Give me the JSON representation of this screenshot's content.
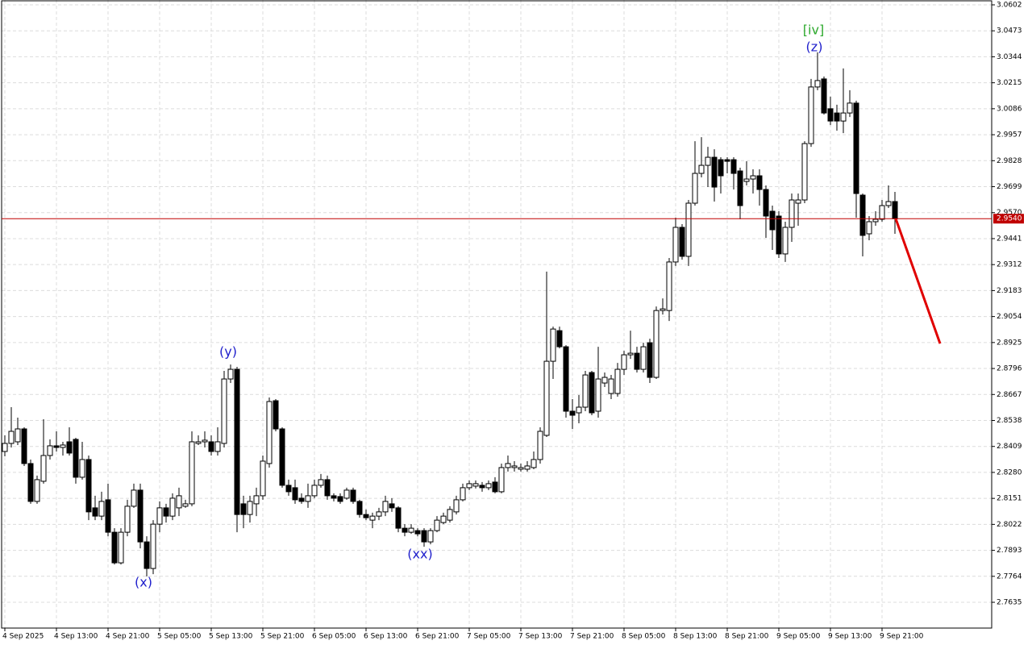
{
  "chart_data": {
    "type": "candlestick",
    "categories": [
      "4 Sep 2025",
      null,
      null,
      null,
      null,
      null,
      null,
      null,
      "4 Sep 13:00",
      null,
      null,
      null,
      null,
      null,
      null,
      null,
      "4 Sep 21:00",
      null,
      null,
      null,
      null,
      null,
      null,
      null,
      "5 Sep 05:00",
      null,
      null,
      null,
      null,
      null,
      null,
      null,
      "5 Sep 13:00",
      null,
      null,
      null,
      null,
      null,
      null,
      null,
      "5 Sep 21:00",
      null,
      null,
      null,
      null,
      null,
      null,
      null,
      "6 Sep 05:00",
      null,
      null,
      null,
      null,
      null,
      null,
      null,
      "6 Sep 13:00",
      null,
      null,
      null,
      null,
      null,
      null,
      null,
      "6 Sep 21:00",
      null,
      null,
      null,
      null,
      null,
      null,
      null,
      "7 Sep 05:00",
      null,
      null,
      null,
      null,
      null,
      null,
      null,
      "7 Sep 13:00",
      null,
      null,
      null,
      null,
      null,
      null,
      null,
      "7 Sep 21:00",
      null,
      null,
      null,
      null,
      null,
      null,
      null,
      "8 Sep 05:00",
      null,
      null,
      null,
      null,
      null,
      null,
      null,
      "8 Sep 13:00",
      null,
      null,
      null,
      null,
      null,
      null,
      null,
      "8 Sep 21:00",
      null,
      null,
      null,
      null,
      null,
      null,
      null,
      "9 Sep 05:00",
      null,
      null,
      null,
      null,
      null,
      null,
      null,
      "9 Sep 13:00",
      null,
      null,
      null,
      null,
      null,
      null,
      null,
      "9 Sep 21:00",
      null,
      null
    ],
    "open": [
      2.8384,
      2.8424,
      2.8432,
      2.8496,
      2.8324,
      2.8136,
      2.8236,
      2.8364,
      2.8412,
      2.8404,
      2.8432,
      2.8444,
      2.8256,
      2.8344,
      2.8104,
      2.8063,
      2.8144,
      2.7983,
      2.7831,
      2.7983,
      2.8112,
      2.8192,
      2.7935,
      2.7803,
      2.8023,
      2.8104,
      2.8063,
      2.8104,
      2.8112,
      2.8124,
      2.8424,
      2.8432,
      2.8432,
      2.8384,
      2.8424,
      2.8744,
      2.8792,
      2.8124,
      2.8071,
      2.8124,
      2.8164,
      2.8324,
      2.8636,
      2.8496,
      2.8216,
      2.8204,
      2.8152,
      2.8136,
      2.8164,
      2.8216,
      2.8244,
      2.8164,
      2.816,
      2.8152,
      2.8192,
      2.8136,
      2.8071,
      2.8043,
      2.8063,
      2.8084,
      2.8124,
      2.8104,
      2.8003,
      2.7983,
      2.7991,
      2.7991,
      2.7935,
      2.7991,
      2.8031,
      2.8043,
      2.8084,
      2.8144,
      2.8204,
      2.8212,
      2.8216,
      2.8204,
      2.8232,
      2.8184,
      2.8304,
      2.8304,
      2.8296,
      2.8296,
      2.8304,
      2.8344,
      2.8464,
      2.8832,
      2.8984,
      2.8904,
      2.8584,
      2.8576,
      2.8604,
      2.8776,
      2.8584,
      2.8724,
      2.8672,
      2.8672,
      2.8792,
      2.8864,
      2.8872,
      2.8792,
      2.8924,
      2.8752,
      2.9084,
      2.9084,
      2.9325,
      2.9497,
      2.9353,
      2.9617,
      2.9765,
      2.9805,
      2.9845,
      2.9833,
      2.9833,
      2.9833,
      2.9777,
      2.9725,
      2.9737,
      2.9753,
      2.9685,
      2.9577,
      2.9553,
      2.9365,
      2.9497,
      2.9617,
      2.9633,
      2.9913,
      3.0194,
      3.0234,
      3.0086,
      3.0065,
      3.0025,
      3.0065,
      3.0114,
      2.9657,
      2.9465,
      2.9525,
      2.9537,
      2.9605,
      2.9625
    ],
    "high": [
      2.8464,
      2.8604,
      2.8552,
      2.8504,
      2.8344,
      2.8264,
      2.8544,
      2.8444,
      2.8484,
      2.8432,
      2.8504,
      2.8452,
      2.8432,
      2.8364,
      2.8164,
      2.8184,
      2.8224,
      2.8003,
      2.8003,
      2.8144,
      2.8224,
      2.8224,
      2.7963,
      2.8043,
      2.8136,
      2.8124,
      2.8176,
      2.8204,
      2.8144,
      2.8484,
      2.8464,
      2.8484,
      2.8464,
      2.8504,
      2.8784,
      2.8816,
      2.8804,
      2.8164,
      2.8164,
      2.8204,
      2.8364,
      2.8652,
      2.8644,
      2.8504,
      2.8244,
      2.8244,
      2.8176,
      2.8224,
      2.8244,
      2.8272,
      2.8264,
      2.8176,
      2.8176,
      2.8204,
      2.8204,
      2.8144,
      2.8096,
      2.808,
      2.8104,
      2.8164,
      2.8152,
      2.8112,
      2.8023,
      2.8023,
      2.8003,
      2.8003,
      2.8003,
      2.8063,
      2.808,
      2.8112,
      2.8164,
      2.8224,
      2.824,
      2.824,
      2.8232,
      2.824,
      2.8256,
      2.8324,
      2.8364,
      2.8336,
      2.8324,
      2.8336,
      2.8384,
      2.8504,
      2.9277,
      2.9004,
      2.9004,
      2.8912,
      2.8644,
      2.8664,
      2.8784,
      2.8784,
      2.8904,
      2.8776,
      2.8764,
      2.8824,
      2.8884,
      2.8984,
      2.8904,
      2.8924,
      2.8944,
      2.9104,
      2.9144,
      2.9345,
      2.9545,
      2.9513,
      2.9633,
      2.9925,
      2.9945,
      2.9897,
      2.9885,
      2.9845,
      2.9845,
      2.9845,
      2.9793,
      2.9825,
      2.9785,
      2.9785,
      2.9705,
      2.9605,
      2.9577,
      2.9525,
      2.9665,
      2.9665,
      2.9925,
      3.0234,
      3.0366,
      3.0246,
      3.0146,
      3.0106,
      3.0286,
      3.0178,
      3.0126,
      2.9665,
      2.9553,
      2.9577,
      2.9633,
      2.9705,
      2.9673
    ],
    "low": [
      2.836,
      2.8404,
      2.8416,
      2.8312,
      2.8124,
      2.8124,
      2.8224,
      2.8344,
      2.8384,
      2.8364,
      2.8364,
      2.8224,
      2.8244,
      2.8043,
      2.8043,
      2.8043,
      2.7963,
      2.7823,
      2.7823,
      2.7963,
      2.8104,
      2.7903,
      2.7763,
      2.7775,
      2.7983,
      2.8031,
      2.8043,
      2.8063,
      2.8104,
      2.8112,
      2.8416,
      2.8404,
      2.8364,
      2.8364,
      2.8404,
      2.8724,
      2.7983,
      2.8003,
      2.8031,
      2.8063,
      2.8144,
      2.8304,
      2.8484,
      2.8204,
      2.8164,
      2.8124,
      2.8124,
      2.8104,
      2.8152,
      2.8204,
      2.8144,
      2.8136,
      2.8124,
      2.8144,
      2.8124,
      2.8055,
      2.8043,
      2.8003,
      2.8043,
      2.8063,
      2.8084,
      2.7983,
      2.7963,
      2.7975,
      2.7963,
      2.7911,
      2.7923,
      2.7983,
      2.8023,
      2.8031,
      2.8071,
      2.8136,
      2.8192,
      2.82,
      2.8184,
      2.8192,
      2.8176,
      2.8176,
      2.8284,
      2.8284,
      2.8284,
      2.8284,
      2.8296,
      2.8324,
      2.8456,
      2.8744,
      2.8896,
      2.8552,
      2.8496,
      2.8524,
      2.8584,
      2.8564,
      2.8552,
      2.8704,
      2.8644,
      2.8656,
      2.8764,
      2.8844,
      2.8776,
      2.8776,
      2.8724,
      2.8744,
      2.9064,
      2.9032,
      2.9305,
      2.9337,
      2.9305,
      2.9605,
      2.9745,
      2.9697,
      2.9625,
      2.9665,
      2.9765,
      2.9685,
      2.9537,
      2.9705,
      2.9665,
      2.9605,
      2.9445,
      2.9385,
      2.9345,
      2.9325,
      2.9425,
      2.9505,
      2.9617,
      2.9897,
      3.0178,
      3.0057,
      3.0005,
      2.9977,
      2.9965,
      3.0045,
      2.9545,
      2.9353,
      2.9433,
      2.9505,
      2.9525,
      2.9593,
      2.9465
    ],
    "close": [
      2.8424,
      2.8484,
      2.8496,
      2.8324,
      2.8136,
      2.8244,
      2.8364,
      2.8412,
      2.8404,
      2.8416,
      2.8376,
      2.8256,
      2.8344,
      2.8084,
      2.8063,
      2.8136,
      2.7983,
      2.7831,
      2.7983,
      2.8112,
      2.8192,
      2.7935,
      2.7803,
      2.8023,
      2.8104,
      2.8063,
      2.8152,
      2.8164,
      2.8124,
      2.8432,
      2.8432,
      2.844,
      2.8384,
      2.8432,
      2.8744,
      2.8792,
      2.8071,
      2.8071,
      2.8136,
      2.8164,
      2.8336,
      2.8632,
      2.8496,
      2.8216,
      2.8184,
      2.8144,
      2.8136,
      2.8164,
      2.8216,
      2.8244,
      2.8164,
      2.8152,
      2.8136,
      2.8192,
      2.8136,
      2.8071,
      2.8055,
      2.8063,
      2.8084,
      2.8136,
      2.8104,
      2.8003,
      2.7983,
      2.8003,
      2.7975,
      2.7935,
      2.7991,
      2.8043,
      2.8063,
      2.8096,
      2.8144,
      2.8204,
      2.8224,
      2.8224,
      2.8204,
      2.8224,
      2.8184,
      2.8304,
      2.8324,
      2.8312,
      2.8304,
      2.8312,
      2.8344,
      2.8484,
      2.8832,
      2.8992,
      2.8904,
      2.8584,
      2.8564,
      2.8604,
      2.8764,
      2.8576,
      2.8744,
      2.8752,
      2.8744,
      2.8792,
      2.8864,
      2.8872,
      2.8792,
      2.8904,
      2.8752,
      2.9084,
      2.9092,
      2.9325,
      2.9497,
      2.9353,
      2.9617,
      2.9765,
      2.9805,
      2.9845,
      2.9697,
      2.9753,
      2.9825,
      2.9765,
      2.9605,
      2.9737,
      2.9753,
      2.9685,
      2.9553,
      2.9485,
      2.9365,
      2.9497,
      2.9633,
      2.9633,
      2.9913,
      3.0194,
      3.0226,
      3.0065,
      3.0025,
      3.0025,
      3.0065,
      3.0114,
      2.9665,
      2.9457,
      2.9525,
      2.9537,
      2.9605,
      2.9625,
      2.954
    ],
    "up_color": "#ffffff",
    "down_color": "#000000",
    "line_color": "#000000",
    "ylim": [
      2.7507,
      3.0626
    ],
    "yticks": [
      3.0602,
      3.0473,
      3.0344,
      3.0215,
      3.0086,
      2.9957,
      2.9828,
      2.9699,
      {
        "value": 2.957,
        "label": "2.9570"
      },
      2.9441,
      2.9312,
      2.9183,
      2.9054,
      2.8925,
      2.8796,
      2.8667,
      2.8538,
      2.8409,
      {
        "value": 2.828,
        "label": "2.8280"
      },
      2.8151,
      2.8022,
      2.7893,
      2.7764,
      2.7635
    ],
    "grid": true,
    "last_price": {
      "value": 2.954,
      "label": "2.9540",
      "color": "#c00000"
    },
    "forecast": {
      "values": [
        2.954,
        2.892
      ],
      "color": "#e00000"
    },
    "annotations": [
      {
        "text": "(x)",
        "color": "#2020cc"
      },
      {
        "text": "(y)",
        "color": "#2020cc"
      },
      {
        "text": "(xx)",
        "color": "#2020cc"
      },
      {
        "text": "(z)",
        "color": "#2020cc"
      },
      {
        "text": "[iv]",
        "color": "#2eaa2e"
      }
    ]
  }
}
